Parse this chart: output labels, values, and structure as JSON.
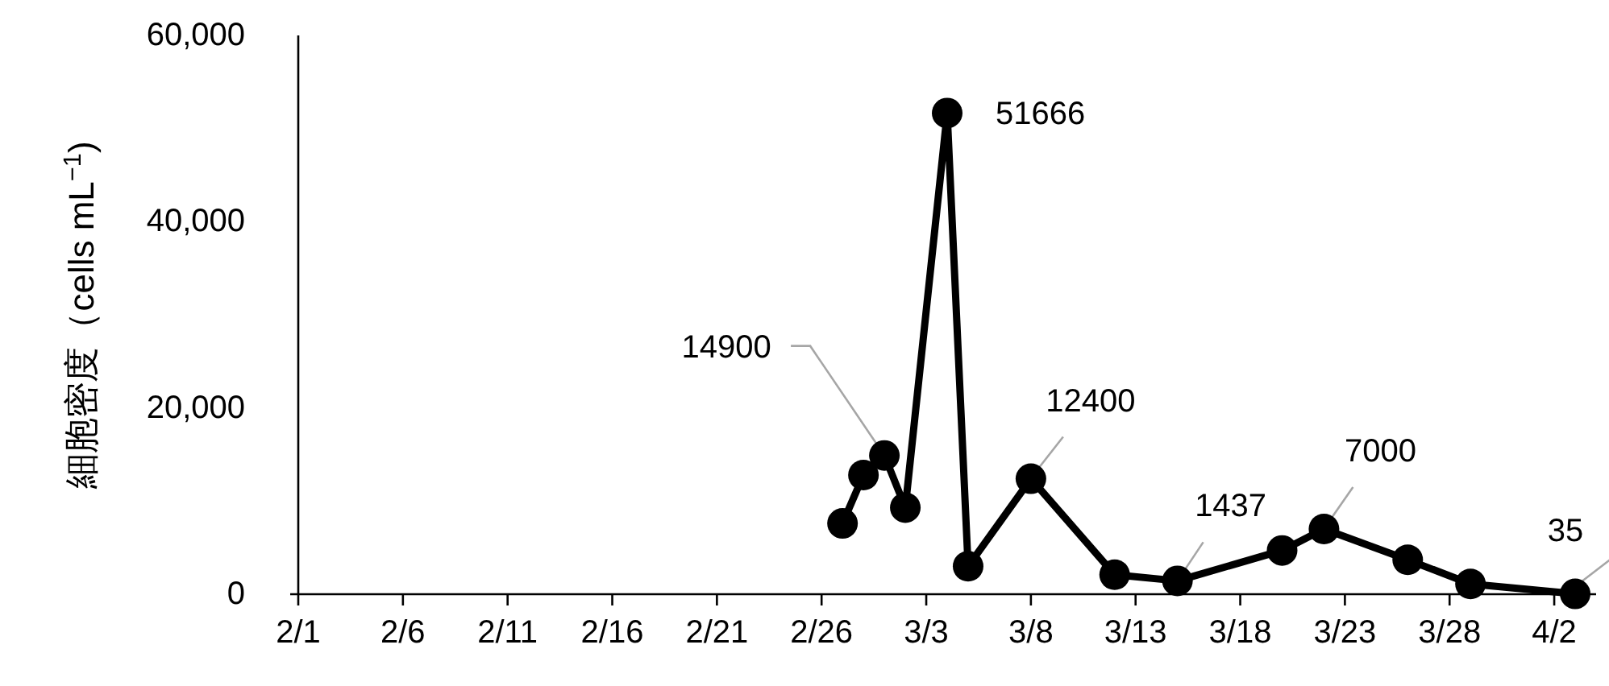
{
  "chart_data": {
    "type": "line",
    "ylabel": "細胞密度（cells mL$^{−1}$)",
    "x": [
      "--02-27",
      "--02-28",
      "--03-01",
      "--03-02",
      "--03-04",
      "--03-05",
      "--03-08",
      "--03-12",
      "--03-15",
      "--03-20",
      "--03-22",
      "--03-26",
      "--03-29",
      "--04-03"
    ],
    "series": [
      {
        "color": "#000000",
        "values": [
          7600,
          12800,
          14900,
          9300,
          51666,
          3000,
          12400,
          2100,
          1437,
          4700,
          7000,
          3700,
          1100,
          35
        ],
        "value_labels": [
          null,
          null,
          "14900",
          null,
          "51666",
          null,
          "12400",
          null,
          "1437",
          null,
          "7000",
          null,
          null,
          "35"
        ]
      }
    ],
    "xlim": [
      "--02-01",
      "--04-04"
    ],
    "xticks": [
      {
        "value": "--02-01",
        "label": "2/1"
      },
      {
        "value": "--02-06",
        "label": "2/6"
      },
      {
        "value": "--02-11",
        "label": "2/11"
      },
      {
        "value": "--02-16",
        "label": "2/16"
      },
      {
        "value": "--02-21",
        "label": "2/21"
      },
      {
        "value": "--02-26",
        "label": "2/26"
      },
      {
        "value": "--03-03",
        "label": "3/3"
      },
      {
        "value": "--03-08",
        "label": "3/8"
      },
      {
        "value": "--03-13",
        "label": "3/13"
      },
      {
        "value": "--03-18",
        "label": "3/18"
      },
      {
        "value": "--03-23",
        "label": "3/23"
      },
      {
        "value": "--03-28",
        "label": "3/28"
      },
      {
        "value": "--04-02",
        "label": "4/2"
      }
    ],
    "ylim": [
      0,
      60000
    ],
    "yticks": [
      {
        "value": 0,
        "label": "0"
      },
      {
        "value": 20000,
        "label": "20,000"
      },
      {
        "value": 40000,
        "label": "40,000"
      },
      {
        "value": 60000,
        "label": "60,000"
      }
    ],
    "marker": "circle",
    "line_style": "solid",
    "grid": false
  }
}
